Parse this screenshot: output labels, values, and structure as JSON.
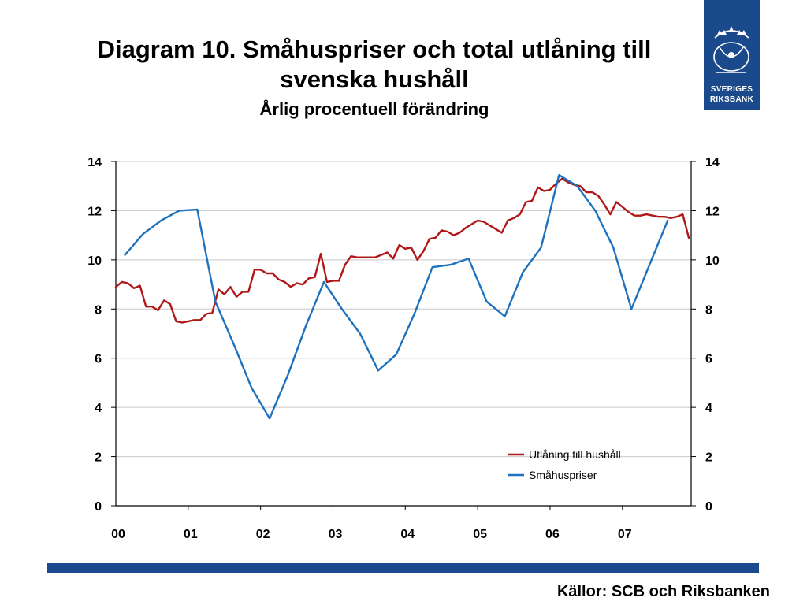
{
  "title_line1": "Diagram 10. Småhuspriser och total utlåning till",
  "title_line2": "svenska hushåll",
  "subtitle": "Årlig procentuell förändring",
  "logo": {
    "line1": "SVERIGES",
    "line2": "RIKSBANK",
    "color": "#1b4a8c"
  },
  "source": "Källor: SCB och Riksbanken",
  "colors": {
    "lending": "#b01818",
    "prices": "#1e72bd",
    "grid": "#c8c8c8",
    "brand": "#1b4a8c"
  },
  "chart_data": {
    "type": "line",
    "title": "",
    "xlabel": "",
    "ylabel": "",
    "ylim": [
      0,
      14
    ],
    "xlim": [
      2000,
      2007.95
    ],
    "yticks": [
      "0",
      "2",
      "4",
      "6",
      "8",
      "10",
      "12",
      "14"
    ],
    "yticks_right": [
      "0",
      "2",
      "4",
      "6",
      "8",
      "10",
      "12",
      "14"
    ],
    "xticks": [
      "00",
      "01",
      "02",
      "03",
      "04",
      "05",
      "06",
      "07"
    ],
    "grid": true,
    "legend": "bottom-right",
    "series": [
      {
        "name": "Utlåning till hushåll",
        "x": [
          2000.0,
          2000.083,
          2000.167,
          2000.25,
          2000.333,
          2000.417,
          2000.5,
          2000.583,
          2000.667,
          2000.75,
          2000.833,
          2000.917,
          2001.0,
          2001.083,
          2001.167,
          2001.25,
          2001.333,
          2001.417,
          2001.5,
          2001.583,
          2001.667,
          2001.75,
          2001.833,
          2001.917,
          2002.0,
          2002.083,
          2002.167,
          2002.25,
          2002.333,
          2002.417,
          2002.5,
          2002.583,
          2002.667,
          2002.75,
          2002.833,
          2002.917,
          2003.0,
          2003.083,
          2003.167,
          2003.25,
          2003.333,
          2003.417,
          2003.5,
          2003.583,
          2003.667,
          2003.75,
          2003.833,
          2003.917,
          2004.0,
          2004.083,
          2004.167,
          2004.25,
          2004.333,
          2004.417,
          2004.5,
          2004.583,
          2004.667,
          2004.75,
          2004.833,
          2004.917,
          2005.0,
          2005.083,
          2005.167,
          2005.25,
          2005.333,
          2005.417,
          2005.5,
          2005.583,
          2005.667,
          2005.75,
          2005.833,
          2005.917,
          2006.0,
          2006.083,
          2006.167,
          2006.25,
          2006.333,
          2006.417,
          2006.5,
          2006.583,
          2006.667,
          2006.75,
          2006.833,
          2006.917,
          2007.0,
          2007.083,
          2007.167,
          2007.25,
          2007.333,
          2007.417,
          2007.5,
          2007.583,
          2007.667,
          2007.75,
          2007.833,
          2007.917
        ],
        "values": [
          8.9,
          9.1,
          9.05,
          8.85,
          8.95,
          8.1,
          8.1,
          7.95,
          8.35,
          8.2,
          7.5,
          7.45,
          7.5,
          7.55,
          7.55,
          7.8,
          7.85,
          8.8,
          8.6,
          8.9,
          8.5,
          8.7,
          8.7,
          9.6,
          9.6,
          9.45,
          9.45,
          9.2,
          9.1,
          8.9,
          9.05,
          9.0,
          9.25,
          9.3,
          10.25,
          9.1,
          9.15,
          9.15,
          9.8,
          10.15,
          10.1,
          10.1,
          10.1,
          10.1,
          10.2,
          10.3,
          10.05,
          10.6,
          10.45,
          10.5,
          10.0,
          10.35,
          10.85,
          10.9,
          11.2,
          11.15,
          11.0,
          11.1,
          11.3,
          11.45,
          11.6,
          11.55,
          11.4,
          11.25,
          11.1,
          11.6,
          11.7,
          11.85,
          12.35,
          12.4,
          12.95,
          12.8,
          12.85,
          13.1,
          13.3,
          13.15,
          13.05,
          13.0,
          12.75,
          12.75,
          12.6,
          12.25,
          11.85,
          12.35,
          12.15,
          11.95,
          11.8,
          11.8,
          11.85,
          11.8,
          11.75,
          11.75,
          11.7,
          11.75,
          11.85,
          10.9
        ]
      },
      {
        "name": "Småhuspriser",
        "x": [
          2000.125,
          2000.375,
          2000.625,
          2000.875,
          2001.125,
          2001.375,
          2001.625,
          2001.875,
          2002.125,
          2002.375,
          2002.625,
          2002.875,
          2003.125,
          2003.375,
          2003.625,
          2003.875,
          2004.125,
          2004.375,
          2004.625,
          2004.875,
          2005.125,
          2005.375,
          2005.625,
          2005.875,
          2006.125,
          2006.375,
          2006.625,
          2006.875,
          2007.125,
          2007.375,
          2007.625
        ],
        "values": [
          10.2,
          11.05,
          11.6,
          12.0,
          12.05,
          8.3,
          6.6,
          4.8,
          3.55,
          5.3,
          7.3,
          9.1,
          8.0,
          7.0,
          5.5,
          6.15,
          7.8,
          9.7,
          9.8,
          10.05,
          8.3,
          7.7,
          9.5,
          10.5,
          13.45,
          13.0,
          12.0,
          10.5,
          8.0,
          9.8,
          11.6
        ]
      }
    ]
  }
}
